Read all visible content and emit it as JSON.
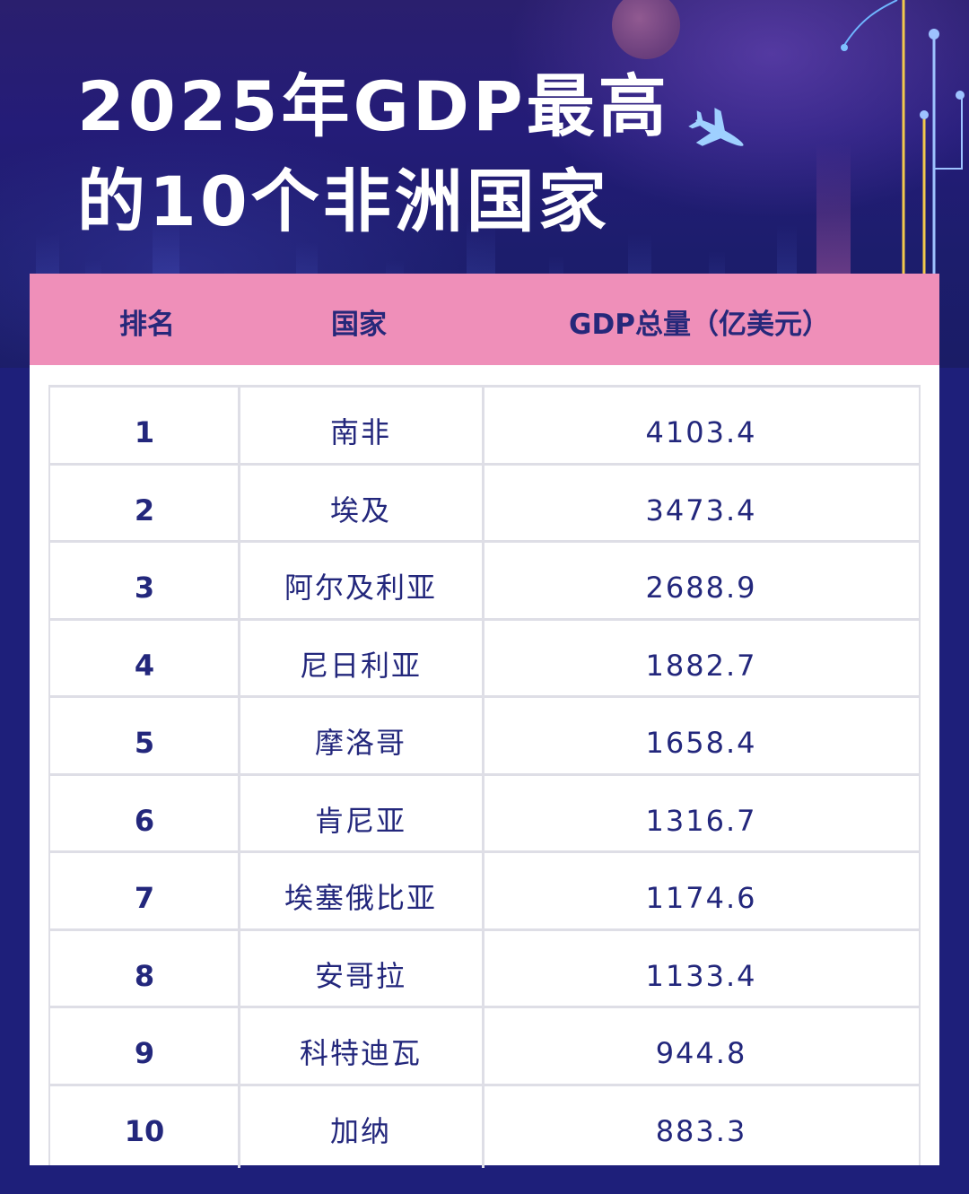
{
  "title": {
    "line1": "2025年GDP最高",
    "line2": "的10个非洲国家"
  },
  "table": {
    "headers": [
      "排名",
      "国家",
      "GDP总量（亿美元）"
    ],
    "rows": [
      {
        "rank": "1",
        "country": "南非",
        "gdp": "4103.4"
      },
      {
        "rank": "2",
        "country": "埃及",
        "gdp": "3473.4"
      },
      {
        "rank": "3",
        "country": "阿尔及利亚",
        "gdp": "2688.9"
      },
      {
        "rank": "4",
        "country": "尼日利亚",
        "gdp": "1882.7"
      },
      {
        "rank": "5",
        "country": "摩洛哥",
        "gdp": "1658.4"
      },
      {
        "rank": "6",
        "country": "肯尼亚",
        "gdp": "1316.7"
      },
      {
        "rank": "7",
        "country": "埃塞俄比亚",
        "gdp": "1174.6"
      },
      {
        "rank": "8",
        "country": "安哥拉",
        "gdp": "1133.4"
      },
      {
        "rank": "9",
        "country": "科特迪瓦",
        "gdp": "944.8"
      },
      {
        "rank": "10",
        "country": "加纳",
        "gdp": "883.3"
      }
    ]
  },
  "colors": {
    "background": "#1e1f7a",
    "header_row": "#ef8fb9",
    "text_dark": "#23277c",
    "title": "#ffffff"
  },
  "icons": {
    "airplane": "airplane-icon"
  }
}
